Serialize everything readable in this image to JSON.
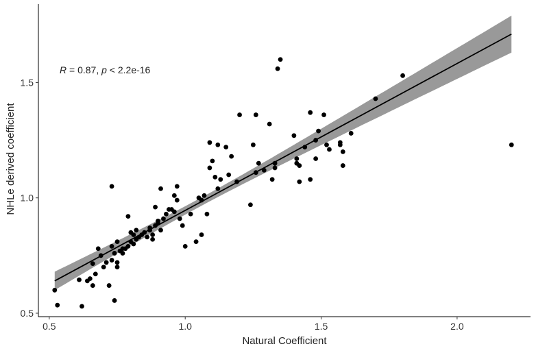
{
  "chart_data": {
    "type": "scatter",
    "xlabel": "Natural Coefficient",
    "ylabel": "NHLe derived coefficient",
    "xlim": [
      0.46,
      2.27
    ],
    "ylim": [
      0.485,
      1.84
    ],
    "xticks": [
      0.5,
      1.0,
      1.5,
      2.0
    ],
    "xtick_labels": [
      "0.5",
      "1.0",
      "1.5",
      "2.0"
    ],
    "yticks": [
      0.5,
      1.0,
      1.5
    ],
    "ytick_labels": [
      "0.5",
      "1.0",
      "1.5"
    ],
    "grid": false,
    "annotation": {
      "r_symbol": "R",
      "r_text": " = 0.87, ",
      "p_symbol": "p",
      "p_text": " < 2.2e-16"
    },
    "regression": {
      "x": [
        0.52,
        2.2
      ],
      "y": [
        0.64,
        1.71
      ],
      "ci_lower": [
        0.6,
        1.63
      ],
      "ci_upper": [
        0.68,
        1.79
      ],
      "center_x": 1.05,
      "center_y": 0.98,
      "center_ci_half_width": 0.018,
      "line_color": "#000000",
      "band_color": "#999999"
    },
    "points": [
      {
        "x": 0.52,
        "y": 0.6
      },
      {
        "x": 0.53,
        "y": 0.535
      },
      {
        "x": 0.61,
        "y": 0.645
      },
      {
        "x": 0.62,
        "y": 0.53
      },
      {
        "x": 0.64,
        "y": 0.64
      },
      {
        "x": 0.65,
        "y": 0.65
      },
      {
        "x": 0.66,
        "y": 0.62
      },
      {
        "x": 0.66,
        "y": 0.715
      },
      {
        "x": 0.67,
        "y": 0.67
      },
      {
        "x": 0.68,
        "y": 0.78
      },
      {
        "x": 0.69,
        "y": 0.75
      },
      {
        "x": 0.7,
        "y": 0.7
      },
      {
        "x": 0.71,
        "y": 0.72
      },
      {
        "x": 0.72,
        "y": 0.62
      },
      {
        "x": 0.73,
        "y": 1.05
      },
      {
        "x": 0.73,
        "y": 0.73
      },
      {
        "x": 0.73,
        "y": 0.79
      },
      {
        "x": 0.74,
        "y": 0.555
      },
      {
        "x": 0.74,
        "y": 0.76
      },
      {
        "x": 0.75,
        "y": 0.72
      },
      {
        "x": 0.75,
        "y": 0.7
      },
      {
        "x": 0.75,
        "y": 0.81
      },
      {
        "x": 0.76,
        "y": 0.77
      },
      {
        "x": 0.77,
        "y": 0.76
      },
      {
        "x": 0.77,
        "y": 0.78
      },
      {
        "x": 0.78,
        "y": 0.78
      },
      {
        "x": 0.79,
        "y": 0.79
      },
      {
        "x": 0.79,
        "y": 0.92
      },
      {
        "x": 0.8,
        "y": 0.81
      },
      {
        "x": 0.8,
        "y": 0.85
      },
      {
        "x": 0.81,
        "y": 0.8
      },
      {
        "x": 0.81,
        "y": 0.84
      },
      {
        "x": 0.82,
        "y": 0.82
      },
      {
        "x": 0.82,
        "y": 0.86
      },
      {
        "x": 0.83,
        "y": 0.83
      },
      {
        "x": 0.84,
        "y": 0.84
      },
      {
        "x": 0.85,
        "y": 0.85
      },
      {
        "x": 0.86,
        "y": 0.83
      },
      {
        "x": 0.87,
        "y": 0.86
      },
      {
        "x": 0.87,
        "y": 0.87
      },
      {
        "x": 0.88,
        "y": 0.84
      },
      {
        "x": 0.88,
        "y": 0.82
      },
      {
        "x": 0.89,
        "y": 0.88
      },
      {
        "x": 0.89,
        "y": 0.96
      },
      {
        "x": 0.9,
        "y": 0.9
      },
      {
        "x": 0.9,
        "y": 0.89
      },
      {
        "x": 0.91,
        "y": 1.04
      },
      {
        "x": 0.91,
        "y": 0.86
      },
      {
        "x": 0.92,
        "y": 0.91
      },
      {
        "x": 0.93,
        "y": 0.93
      },
      {
        "x": 0.94,
        "y": 0.95
      },
      {
        "x": 0.95,
        "y": 0.95
      },
      {
        "x": 0.96,
        "y": 0.94
      },
      {
        "x": 0.96,
        "y": 1.01
      },
      {
        "x": 0.97,
        "y": 0.99
      },
      {
        "x": 0.97,
        "y": 1.05
      },
      {
        "x": 0.98,
        "y": 0.91
      },
      {
        "x": 0.99,
        "y": 0.88
      },
      {
        "x": 1.0,
        "y": 0.79
      },
      {
        "x": 1.02,
        "y": 0.93
      },
      {
        "x": 1.04,
        "y": 0.81
      },
      {
        "x": 1.05,
        "y": 1.0
      },
      {
        "x": 1.06,
        "y": 0.99
      },
      {
        "x": 1.06,
        "y": 0.84
      },
      {
        "x": 1.07,
        "y": 1.01
      },
      {
        "x": 1.08,
        "y": 0.93
      },
      {
        "x": 1.09,
        "y": 1.13
      },
      {
        "x": 1.09,
        "y": 1.24
      },
      {
        "x": 1.1,
        "y": 1.16
      },
      {
        "x": 1.11,
        "y": 1.09
      },
      {
        "x": 1.12,
        "y": 1.23
      },
      {
        "x": 1.12,
        "y": 1.04
      },
      {
        "x": 1.13,
        "y": 1.08
      },
      {
        "x": 1.15,
        "y": 1.22
      },
      {
        "x": 1.16,
        "y": 1.1
      },
      {
        "x": 1.17,
        "y": 1.18
      },
      {
        "x": 1.19,
        "y": 1.07
      },
      {
        "x": 1.2,
        "y": 1.36
      },
      {
        "x": 1.24,
        "y": 0.97
      },
      {
        "x": 1.25,
        "y": 1.23
      },
      {
        "x": 1.26,
        "y": 1.36
      },
      {
        "x": 1.26,
        "y": 1.11
      },
      {
        "x": 1.27,
        "y": 1.15
      },
      {
        "x": 1.29,
        "y": 1.12
      },
      {
        "x": 1.31,
        "y": 1.32
      },
      {
        "x": 1.32,
        "y": 1.08
      },
      {
        "x": 1.33,
        "y": 1.15
      },
      {
        "x": 1.33,
        "y": 1.13
      },
      {
        "x": 1.34,
        "y": 1.56
      },
      {
        "x": 1.35,
        "y": 1.6
      },
      {
        "x": 1.4,
        "y": 1.27
      },
      {
        "x": 1.41,
        "y": 1.17
      },
      {
        "x": 1.41,
        "y": 1.15
      },
      {
        "x": 1.42,
        "y": 1.14
      },
      {
        "x": 1.42,
        "y": 1.07
      },
      {
        "x": 1.44,
        "y": 1.22
      },
      {
        "x": 1.46,
        "y": 1.37
      },
      {
        "x": 1.46,
        "y": 1.08
      },
      {
        "x": 1.48,
        "y": 1.17
      },
      {
        "x": 1.48,
        "y": 1.25
      },
      {
        "x": 1.49,
        "y": 1.29
      },
      {
        "x": 1.51,
        "y": 1.36
      },
      {
        "x": 1.52,
        "y": 1.23
      },
      {
        "x": 1.53,
        "y": 1.21
      },
      {
        "x": 1.57,
        "y": 1.24
      },
      {
        "x": 1.57,
        "y": 1.23
      },
      {
        "x": 1.58,
        "y": 1.2
      },
      {
        "x": 1.58,
        "y": 1.14
      },
      {
        "x": 1.61,
        "y": 1.28
      },
      {
        "x": 1.7,
        "y": 1.43
      },
      {
        "x": 1.8,
        "y": 1.53
      },
      {
        "x": 2.2,
        "y": 1.23
      }
    ]
  }
}
